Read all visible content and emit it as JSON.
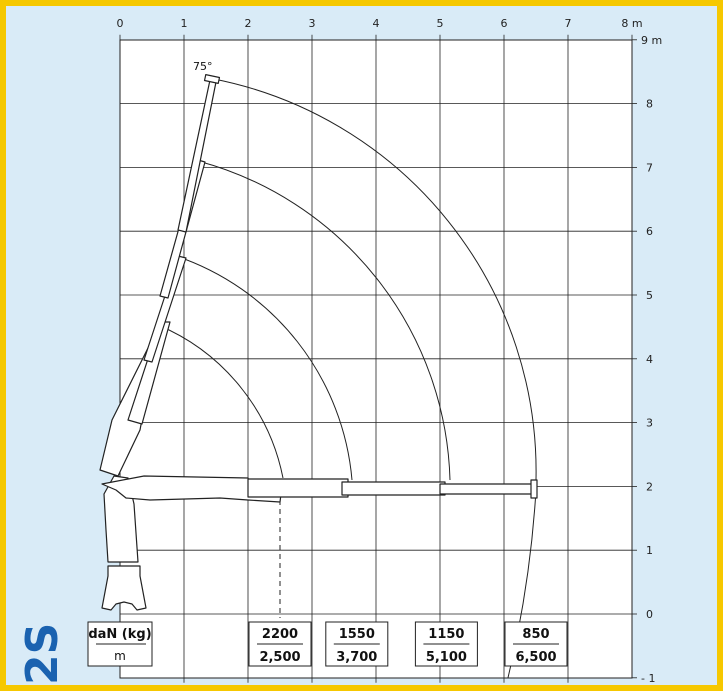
{
  "model": "2S",
  "angle_label": "75°",
  "x_axis": {
    "ticks": [
      "0",
      "1",
      "2",
      "3",
      "4",
      "5",
      "6",
      "7"
    ],
    "end_label": "8 m"
  },
  "y_axis": {
    "ticks": [
      "0",
      "1",
      "2",
      "3",
      "4",
      "5",
      "6",
      "7",
      "8"
    ],
    "top_label": "9 m",
    "bottom_label": "- 1"
  },
  "legend": {
    "load_unit": "daN (kg)",
    "reach_unit": "m"
  },
  "load_boxes": [
    {
      "load": "2200",
      "reach": "2,500"
    },
    {
      "load": "1550",
      "reach": "3,700"
    },
    {
      "load": "1150",
      "reach": "5,100"
    },
    {
      "load": "850",
      "reach": "6,500"
    }
  ],
  "chart_data": {
    "type": "load_diagram",
    "xlim": [
      0,
      8
    ],
    "ylim": [
      -1,
      9
    ],
    "x_unit": "m",
    "y_unit": "m",
    "boom_angle_deg": 75,
    "capacities": [
      {
        "load_daN": 2200,
        "reach_m": 2.5
      },
      {
        "load_daN": 1550,
        "reach_m": 3.7
      },
      {
        "load_daN": 1150,
        "reach_m": 5.1
      },
      {
        "load_daN": 850,
        "reach_m": 6.5
      }
    ]
  },
  "colors": {
    "frame": "#f6c800",
    "background": "#d9ebf7",
    "model": "#1a62b0",
    "line": "#222222"
  }
}
